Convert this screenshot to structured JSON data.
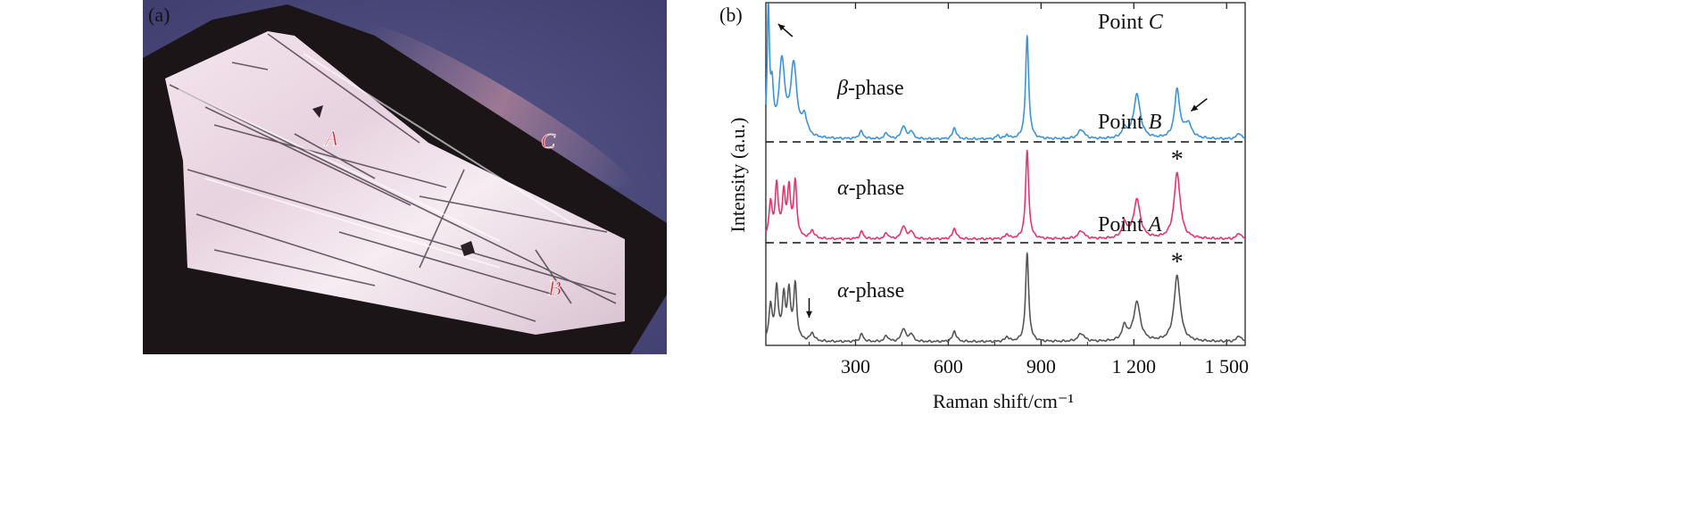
{
  "panel_a": {
    "label": "(a)",
    "points": [
      {
        "name": "A"
      },
      {
        "name": "B"
      },
      {
        "name": "C"
      }
    ]
  },
  "chart_data": {
    "type": "line",
    "panel_label": "(b)",
    "xlabel": "Raman shift/cm⁻¹",
    "ylabel": "Intensity (a.u.)",
    "xlim": [
      10,
      1560
    ],
    "xticks": [
      300,
      600,
      900,
      1200,
      1500
    ],
    "xtick_labels": [
      "300",
      "600",
      "900",
      "1 200",
      "1 500"
    ],
    "colors": {
      "C": "#3a93dd",
      "B": "#e8336b",
      "A": "#555555",
      "divider": "#111111",
      "annotation": "#111111"
    },
    "series": [
      {
        "key": "C",
        "point_label": "Point",
        "point_name": "C",
        "phase_symbol": "β",
        "phase_text": "-phase",
        "marker": "",
        "peaks": [
          [
            18,
            10.0,
            4
          ],
          [
            30,
            3.2,
            6
          ],
          [
            62,
            5.6,
            11
          ],
          [
            100,
            5.3,
            12
          ],
          [
            135,
            1.4,
            10
          ],
          [
            318,
            0.55,
            8
          ],
          [
            400,
            0.45,
            7
          ],
          [
            455,
            1.0,
            8
          ],
          [
            480,
            0.6,
            7
          ],
          [
            620,
            0.85,
            7
          ],
          [
            760,
            0.25,
            6
          ],
          [
            790,
            0.3,
            6
          ],
          [
            855,
            7.7,
            6
          ],
          [
            1030,
            0.7,
            12
          ],
          [
            1170,
            0.7,
            10
          ],
          [
            1210,
            3.3,
            13
          ],
          [
            1340,
            3.6,
            10
          ],
          [
            1375,
            1.1,
            14
          ],
          [
            1540,
            0.45,
            8
          ]
        ],
        "arrows": [
          {
            "x": 50,
            "height": 8.6,
            "direction": "up-left"
          },
          {
            "x": 1385,
            "height": 2.1,
            "direction": "down-left"
          }
        ]
      },
      {
        "key": "B",
        "point_label": "Point",
        "point_name": "B",
        "phase_symbol": "α",
        "phase_text": "-phase",
        "marker": "*",
        "peaks": [
          [
            25,
            2.6,
            6
          ],
          [
            45,
            3.9,
            6
          ],
          [
            68,
            3.2,
            6
          ],
          [
            85,
            3.5,
            6
          ],
          [
            105,
            4.1,
            6
          ],
          [
            160,
            0.6,
            8
          ],
          [
            320,
            0.55,
            7
          ],
          [
            400,
            0.45,
            7
          ],
          [
            455,
            1.0,
            8
          ],
          [
            480,
            0.6,
            7
          ],
          [
            620,
            0.8,
            7
          ],
          [
            790,
            0.35,
            7
          ],
          [
            855,
            6.6,
            6
          ],
          [
            1030,
            0.6,
            12
          ],
          [
            1170,
            1.1,
            10
          ],
          [
            1210,
            2.9,
            13
          ],
          [
            1340,
            4.9,
            12
          ],
          [
            1540,
            0.45,
            8
          ]
        ],
        "arrows": []
      },
      {
        "key": "A",
        "point_label": "Point",
        "point_name": "A",
        "phase_symbol": "α",
        "phase_text": "-phase",
        "marker": "*",
        "peaks": [
          [
            25,
            2.6,
            6
          ],
          [
            45,
            3.9,
            6
          ],
          [
            68,
            3.2,
            6
          ],
          [
            85,
            3.5,
            6
          ],
          [
            105,
            4.1,
            6
          ],
          [
            160,
            0.6,
            8
          ],
          [
            320,
            0.55,
            7
          ],
          [
            400,
            0.45,
            7
          ],
          [
            455,
            1.0,
            8
          ],
          [
            480,
            0.6,
            7
          ],
          [
            620,
            0.8,
            7
          ],
          [
            790,
            0.35,
            7
          ],
          [
            855,
            6.6,
            6
          ],
          [
            1030,
            0.6,
            12
          ],
          [
            1170,
            1.1,
            10
          ],
          [
            1210,
            2.9,
            13
          ],
          [
            1340,
            4.9,
            12
          ],
          [
            1540,
            0.45,
            8
          ]
        ],
        "arrows": [
          {
            "x": 150,
            "height": 1.8,
            "direction": "down"
          }
        ]
      }
    ]
  }
}
